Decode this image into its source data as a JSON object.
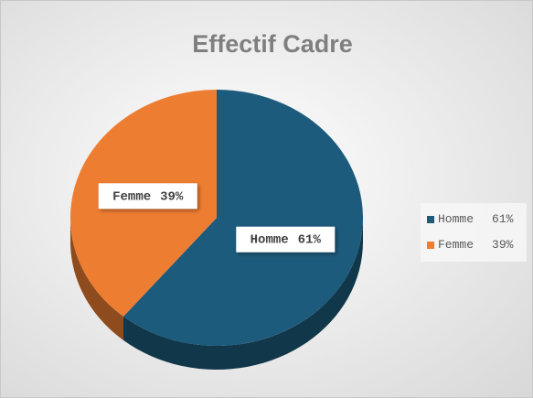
{
  "chart_data": {
    "type": "pie",
    "title": "Effectif Cadre",
    "categories": [
      "Homme",
      "Femme"
    ],
    "values": [
      61,
      39
    ],
    "value_labels": [
      "61%",
      "39%"
    ],
    "colors": [
      "#1d5b7c",
      "#ed7d31"
    ],
    "legend": "right"
  }
}
